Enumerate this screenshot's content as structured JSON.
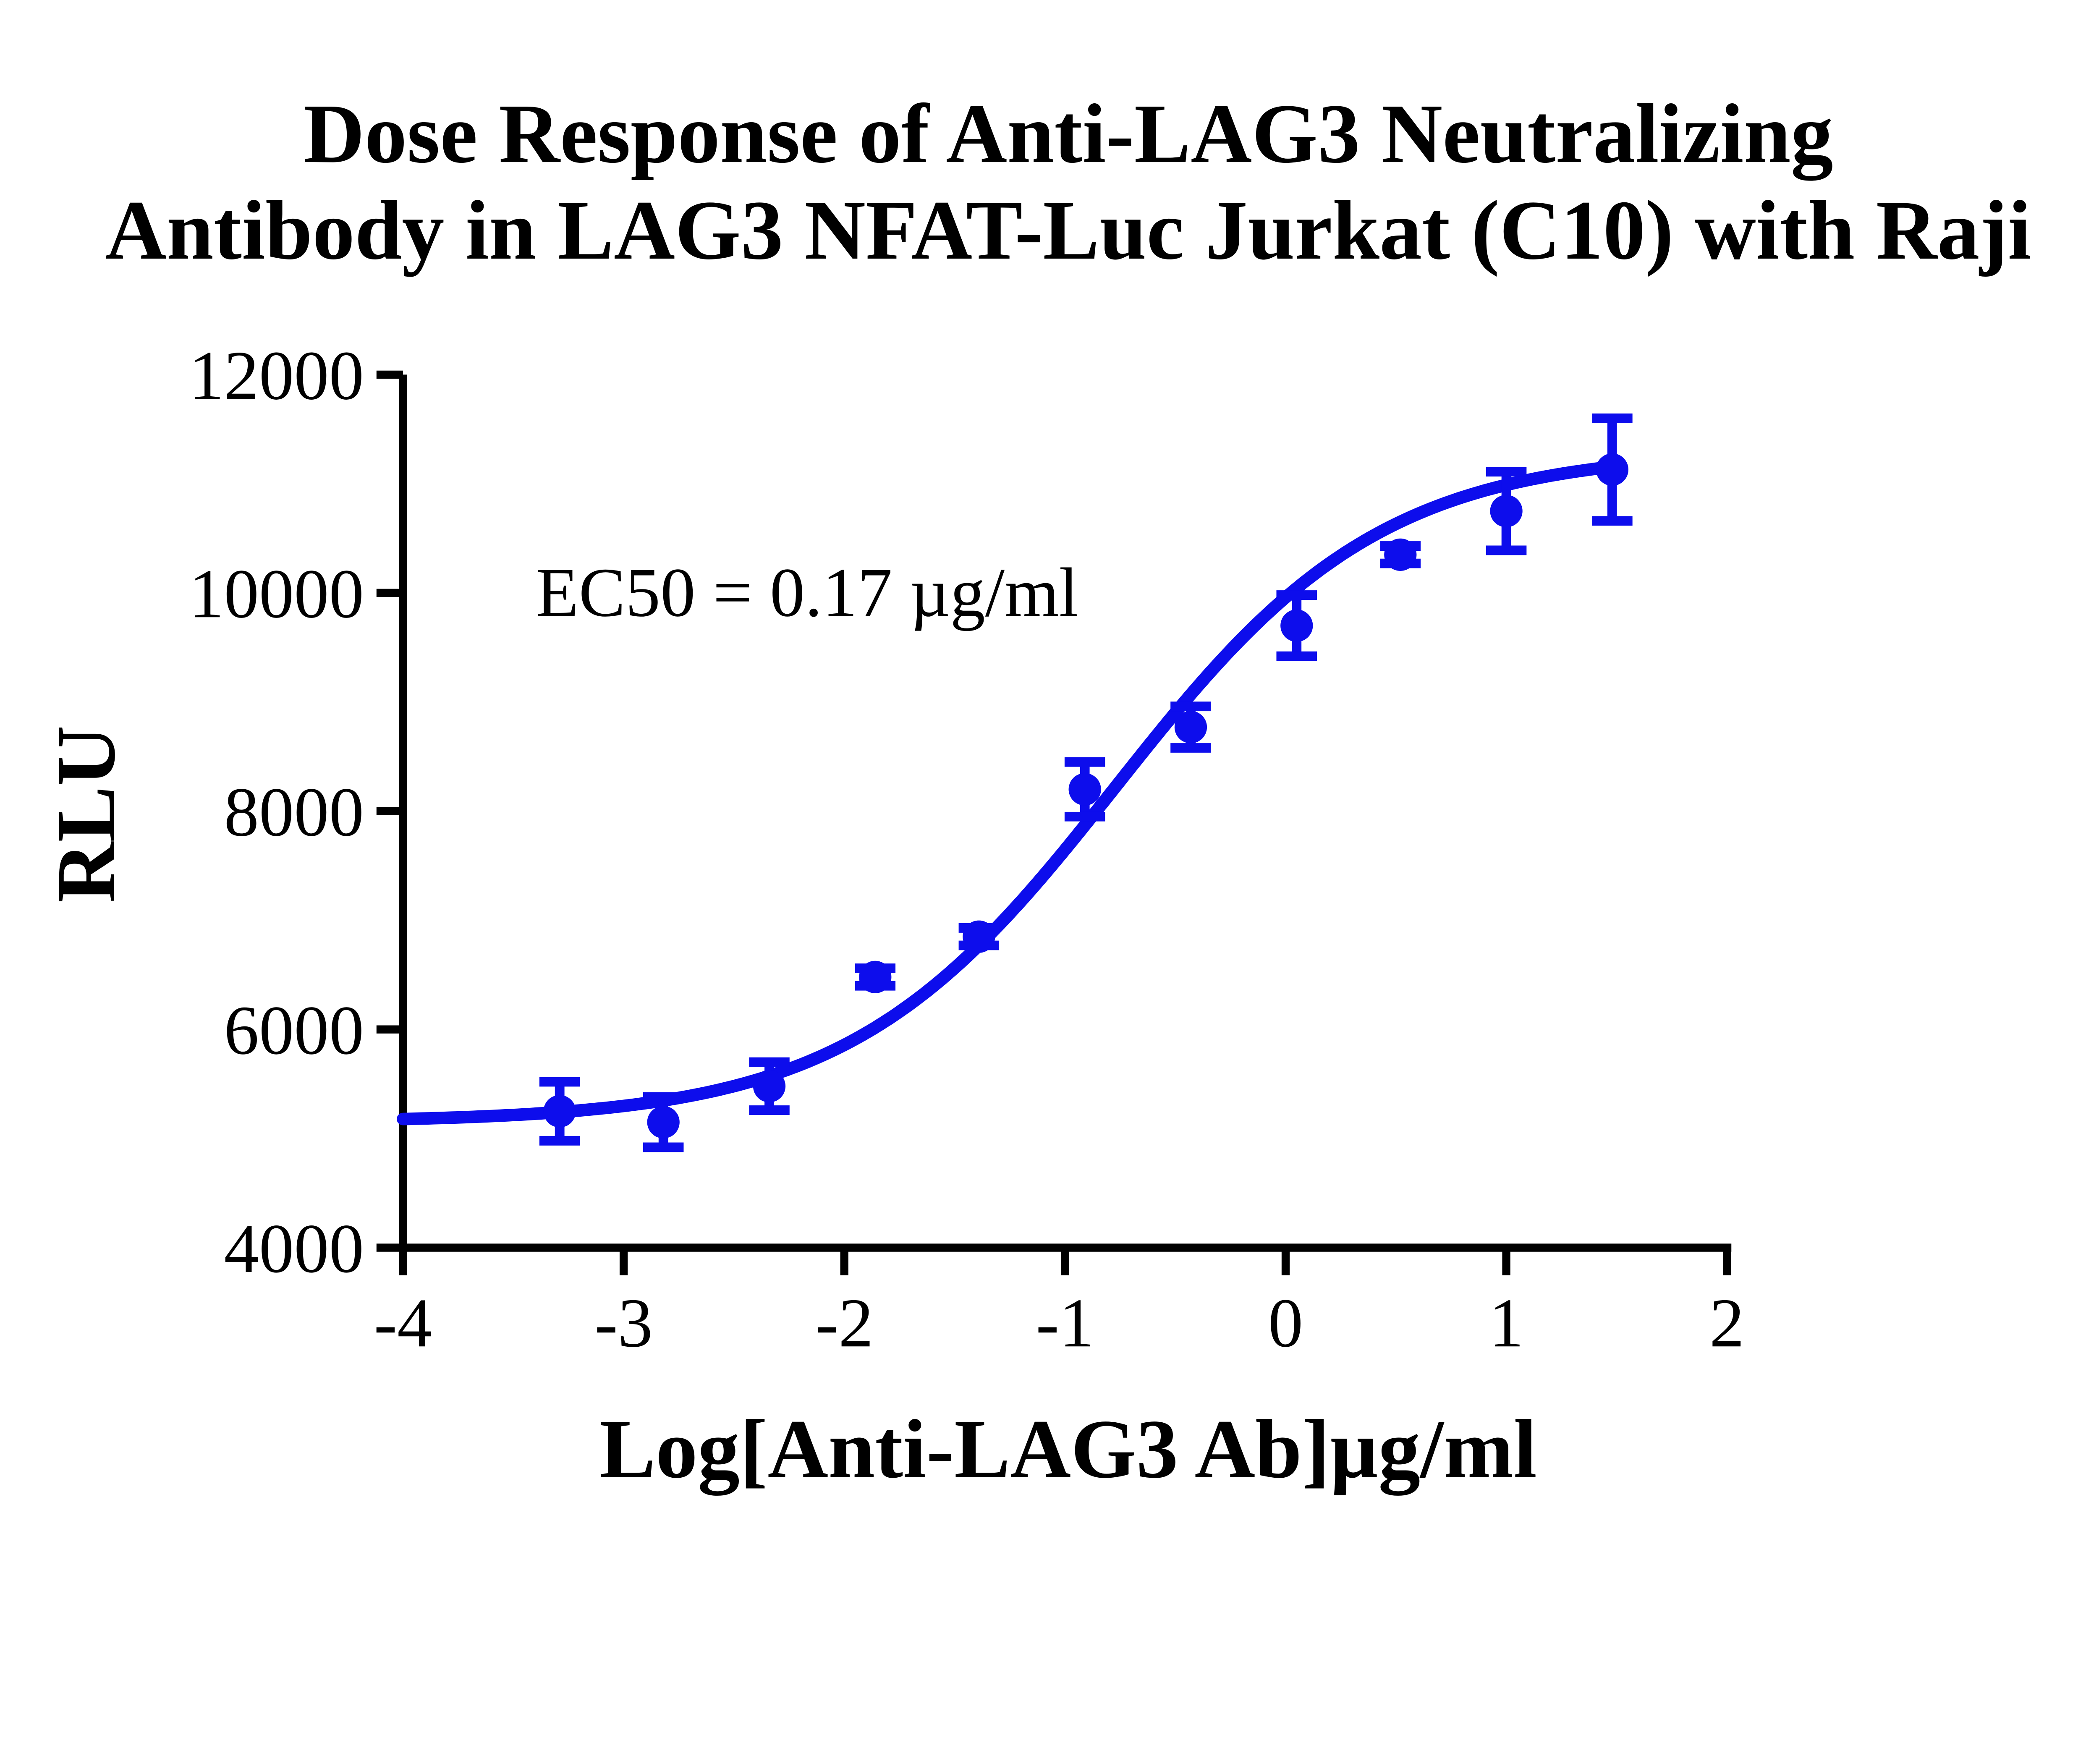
{
  "chart_data": {
    "type": "scatter",
    "title_line1": "Dose Response of Anti-LAG3 Neutralizing",
    "title_line2": "Antibody in LAG3 NFAT-Luc Jurkat (C10) with Raji",
    "xlabel": "Log[Anti-LAG3 Ab]µg/ml",
    "ylabel": "RLU",
    "annotation": {
      "text": "EC50 = 0.17 µg/ml",
      "ec50_value": "0.17",
      "ec50_unit": "µg/ml"
    },
    "xlim": [
      -4,
      2
    ],
    "ylim": [
      4000,
      12000
    ],
    "x_ticks": [
      -4,
      -3,
      -2,
      -1,
      0,
      1,
      2
    ],
    "y_ticks": [
      4000,
      6000,
      8000,
      10000,
      12000
    ],
    "grid": false,
    "legend_position": "none",
    "accent_color": "#0d0dec",
    "axis_color": "#000000",
    "series": [
      {
        "name": "Anti-LAG3 neutralizing antibody",
        "marker": "circle",
        "color": "#0d0dec",
        "points": [
          {
            "x": -3.29,
            "y": 5250,
            "err": 270
          },
          {
            "x": -2.82,
            "y": 5150,
            "err": 230
          },
          {
            "x": -2.34,
            "y": 5480,
            "err": 220
          },
          {
            "x": -1.86,
            "y": 6480,
            "err": 80
          },
          {
            "x": -1.39,
            "y": 6850,
            "err": 80
          },
          {
            "x": -0.91,
            "y": 8200,
            "err": 250
          },
          {
            "x": -0.43,
            "y": 8770,
            "err": 190
          },
          {
            "x": 0.05,
            "y": 9700,
            "err": 280
          },
          {
            "x": 0.52,
            "y": 10350,
            "err": 80
          },
          {
            "x": 1.0,
            "y": 10750,
            "err": 360
          },
          {
            "x": 1.48,
            "y": 11130,
            "err": 470
          }
        ]
      }
    ],
    "fit_curve": {
      "model": "4PL",
      "bottom": 5150,
      "top": 11300,
      "logEC50": -0.77,
      "hill": 0.72,
      "x_start": -4,
      "x_end": 1.52
    }
  }
}
